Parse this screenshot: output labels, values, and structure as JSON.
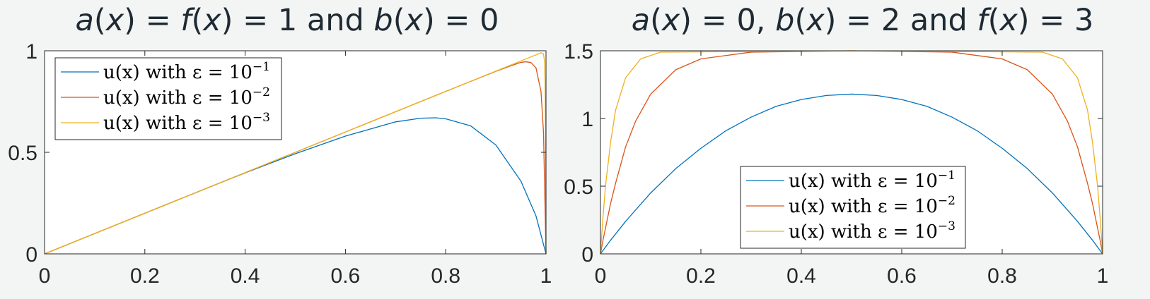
{
  "chart_data": [
    {
      "type": "line",
      "title": [
        "a(x) = f(x) = 1",
        "and",
        "b(x) = 0"
      ],
      "title_parts": [
        {
          "t": "a",
          "i": true
        },
        {
          "t": "(",
          "i": false
        },
        {
          "t": "x",
          "i": true
        },
        {
          "t": ") = ",
          "i": false
        },
        {
          "t": "f",
          "i": true
        },
        {
          "t": "(",
          "i": false
        },
        {
          "t": "x",
          "i": true
        },
        {
          "t": ") = 1 and ",
          "i": false
        },
        {
          "t": "b",
          "i": true
        },
        {
          "t": "(",
          "i": false
        },
        {
          "t": "x",
          "i": true
        },
        {
          "t": ") = 0",
          "i": false
        }
      ],
      "xlim": [
        0,
        1
      ],
      "ylim": [
        0,
        1
      ],
      "xticks": [
        "0",
        "0.2",
        "0.4",
        "0.6",
        "0.8",
        "1"
      ],
      "yticks": [
        "0",
        "0.5",
        "1"
      ],
      "legend_location": "top-left",
      "grid": false,
      "series": [
        {
          "name": "u(x) with ε = 10",
          "exponent": "−1",
          "color": "#0072BD",
          "x": [
            0,
            0.1,
            0.2,
            0.3,
            0.4,
            0.5,
            0.6,
            0.7,
            0.75,
            0.78,
            0.8,
            0.85,
            0.9,
            0.95,
            0.98,
            1
          ],
          "y": [
            0,
            0.1,
            0.2,
            0.3,
            0.399,
            0.493,
            0.58,
            0.65,
            0.668,
            0.67,
            0.665,
            0.63,
            0.536,
            0.358,
            0.187,
            0
          ]
        },
        {
          "name": "u(x) with ε = 10",
          "exponent": "−2",
          "color": "#D95319",
          "x": [
            0,
            0.2,
            0.4,
            0.6,
            0.8,
            0.9,
            0.93,
            0.95,
            0.96,
            0.97,
            0.98,
            0.99,
            0.995,
            1
          ],
          "y": [
            0,
            0.2,
            0.4,
            0.6,
            0.8,
            0.899,
            0.926,
            0.943,
            0.946,
            0.942,
            0.916,
            0.8,
            0.6,
            0
          ]
        },
        {
          "name": "u(x) with ε = 10",
          "exponent": "−3",
          "color": "#EDB120",
          "x": [
            0,
            0.2,
            0.4,
            0.6,
            0.8,
            0.99,
            0.995,
            0.997,
            0.998,
            0.999,
            1
          ],
          "y": [
            0,
            0.2,
            0.4,
            0.6,
            0.8,
            0.99,
            0.985,
            0.95,
            0.86,
            0.63,
            0
          ]
        }
      ]
    },
    {
      "type": "line",
      "title_parts": [
        {
          "t": "a",
          "i": true
        },
        {
          "t": "(",
          "i": false
        },
        {
          "t": "x",
          "i": true
        },
        {
          "t": ") = 0, ",
          "i": false
        },
        {
          "t": "b",
          "i": true
        },
        {
          "t": "(",
          "i": false
        },
        {
          "t": "x",
          "i": true
        },
        {
          "t": ") = 2 and ",
          "i": false
        },
        {
          "t": "f",
          "i": true
        },
        {
          "t": "(",
          "i": false
        },
        {
          "t": "x",
          "i": true
        },
        {
          "t": ") = 3",
          "i": false
        }
      ],
      "xlim": [
        0,
        1
      ],
      "ylim": [
        0,
        1.5
      ],
      "xticks": [
        "0",
        "0.2",
        "0.4",
        "0.6",
        "0.8",
        "1"
      ],
      "yticks": [
        "0",
        "0.5",
        "1",
        "1.5"
      ],
      "legend_location": "bottom-center",
      "grid": false,
      "series": [
        {
          "name": "u(x) with ε = 10",
          "exponent": "−1",
          "color": "#0072BD",
          "x": [
            0,
            0.02,
            0.05,
            0.1,
            0.15,
            0.2,
            0.25,
            0.3,
            0.35,
            0.4,
            0.45,
            0.5,
            0.55,
            0.6,
            0.65,
            0.7,
            0.75,
            0.8,
            0.85,
            0.9,
            0.95,
            0.98,
            1
          ],
          "y": [
            0,
            0.1,
            0.24,
            0.45,
            0.63,
            0.78,
            0.91,
            1.01,
            1.09,
            1.14,
            1.17,
            1.18,
            1.17,
            1.14,
            1.09,
            1.01,
            0.91,
            0.78,
            0.63,
            0.45,
            0.24,
            0.1,
            0
          ]
        },
        {
          "name": "u(x) with ε = 10",
          "exponent": "−2",
          "color": "#D95319",
          "x": [
            0,
            0.005,
            0.01,
            0.02,
            0.03,
            0.05,
            0.07,
            0.1,
            0.15,
            0.2,
            0.3,
            0.5,
            0.7,
            0.8,
            0.85,
            0.9,
            0.93,
            0.95,
            0.97,
            0.98,
            0.99,
            0.995,
            1
          ],
          "y": [
            0,
            0.1,
            0.19,
            0.37,
            0.52,
            0.79,
            0.98,
            1.18,
            1.36,
            1.44,
            1.49,
            1.5,
            1.49,
            1.44,
            1.36,
            1.18,
            0.98,
            0.79,
            0.52,
            0.37,
            0.19,
            0.1,
            0
          ]
        },
        {
          "name": "u(x) with ε = 10",
          "exponent": "−3",
          "color": "#EDB120",
          "x": [
            0,
            0.002,
            0.005,
            0.01,
            0.02,
            0.03,
            0.05,
            0.08,
            0.12,
            0.5,
            0.88,
            0.92,
            0.95,
            0.97,
            0.98,
            0.99,
            0.995,
            0.998,
            1
          ],
          "y": [
            0,
            0.11,
            0.27,
            0.5,
            0.82,
            1.06,
            1.3,
            1.44,
            1.49,
            1.5,
            1.49,
            1.44,
            1.3,
            1.06,
            0.82,
            0.5,
            0.27,
            0.11,
            0
          ]
        }
      ]
    }
  ]
}
